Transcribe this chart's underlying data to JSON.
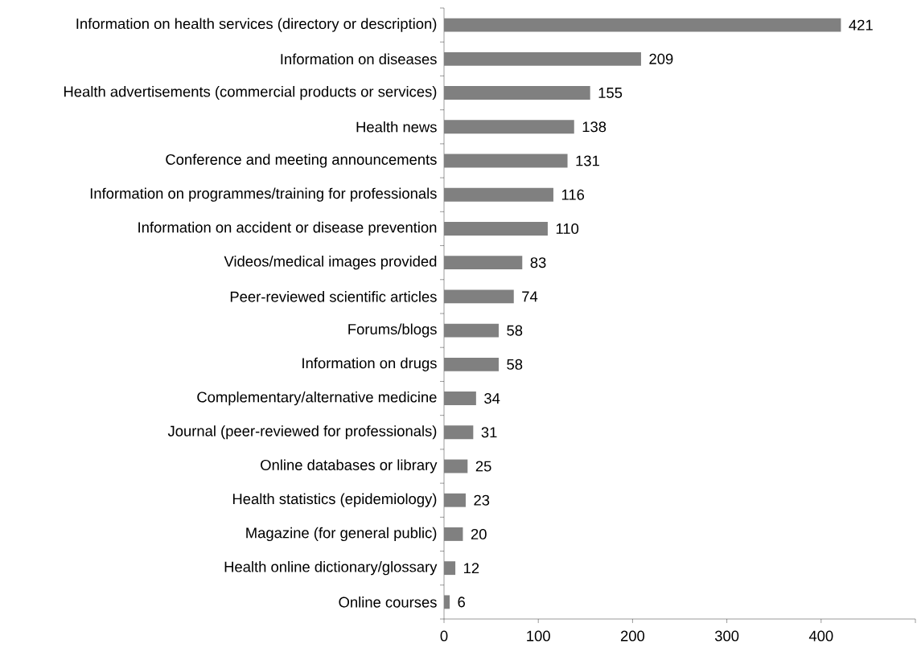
{
  "chart_data": {
    "type": "bar",
    "orientation": "horizontal",
    "categories": [
      "Information on health services (directory or description)",
      "Information on diseases",
      "Health advertisements (commercial products or services)",
      "Health news",
      "Conference and meeting announcements",
      "Information on programmes/training for professionals",
      "Information on accident or disease prevention",
      "Videos/medical images provided",
      "Peer-reviewed scientific articles",
      "Forums/blogs",
      "Information on drugs",
      "Complementary/alternative medicine",
      "Journal (peer-reviewed for professionals)",
      "Online databases or library",
      "Health statistics (epidemiology)",
      "Magazine (for general public)",
      "Health online dictionary/glossary",
      "Online courses"
    ],
    "values": [
      421,
      209,
      155,
      138,
      131,
      116,
      110,
      83,
      74,
      58,
      58,
      34,
      31,
      25,
      23,
      20,
      12,
      6
    ],
    "color": "#808080",
    "xlim": [
      0,
      500
    ],
    "xticks": [
      0,
      100,
      200,
      300,
      400,
      {
        "value": 500,
        "label": null
      }
    ],
    "data_labels": true
  }
}
